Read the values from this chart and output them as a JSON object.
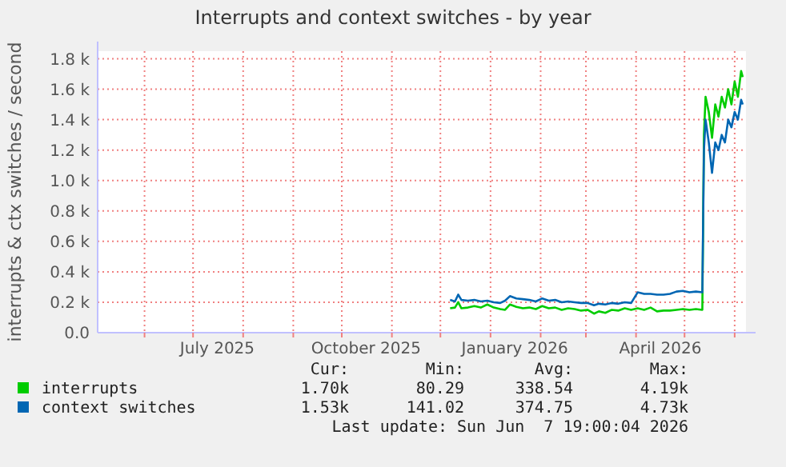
{
  "chart_data": {
    "type": "line",
    "title": "Interrupts and context switches - by year",
    "ylabel": "interrupts & ctx switches / second",
    "xlim": [
      "2025-05-03",
      "2026-06-08"
    ],
    "xticks": [
      {
        "value": "2025-06-01",
        "label": null
      },
      {
        "value": "2025-07-01",
        "label": null
      },
      {
        "value": "2025-07-16",
        "label": "July 2025"
      },
      {
        "value": "2025-08-01",
        "label": null
      },
      {
        "value": "2025-09-01",
        "label": null
      },
      {
        "value": "2025-10-01",
        "label": null
      },
      {
        "value": "2025-10-16",
        "label": "October 2025"
      },
      {
        "value": "2025-11-01",
        "label": null
      },
      {
        "value": "2025-12-01",
        "label": null
      },
      {
        "value": "2026-01-01",
        "label": null
      },
      {
        "value": "2026-01-16",
        "label": "January 2026"
      },
      {
        "value": "2026-02-01",
        "label": null
      },
      {
        "value": "2026-03-01",
        "label": null
      },
      {
        "value": "2026-04-01",
        "label": null
      },
      {
        "value": "2026-04-16",
        "label": "April 2026"
      },
      {
        "value": "2026-05-01",
        "label": null
      },
      {
        "value": "2026-06-01",
        "label": null
      }
    ],
    "ylim": [
      0,
      1850
    ],
    "yticks": [
      {
        "value": 0,
        "label": "0.0"
      },
      {
        "value": 200,
        "label": "0.2 k"
      },
      {
        "value": 400,
        "label": "0.4 k"
      },
      {
        "value": 600,
        "label": "0.6 k"
      },
      {
        "value": 800,
        "label": "0.8 k"
      },
      {
        "value": 1000,
        "label": "1.0 k"
      },
      {
        "value": 1200,
        "label": "1.2 k"
      },
      {
        "value": 1400,
        "label": "1.4 k"
      },
      {
        "value": 1600,
        "label": "1.6 k"
      },
      {
        "value": 1800,
        "label": "1.8 k"
      }
    ],
    "grid": true,
    "legend": "bottom",
    "x": [
      "2025-12-07",
      "2025-12-10",
      "2025-12-12",
      "2025-12-14",
      "2025-12-18",
      "2025-12-22",
      "2025-12-26",
      "2025-12-30",
      "2026-01-03",
      "2026-01-07",
      "2026-01-10",
      "2026-01-13",
      "2026-01-17",
      "2026-01-21",
      "2026-01-25",
      "2026-01-29",
      "2026-02-02",
      "2026-02-06",
      "2026-02-10",
      "2026-02-14",
      "2026-02-18",
      "2026-02-22",
      "2026-02-26",
      "2026-03-02",
      "2026-03-06",
      "2026-03-09",
      "2026-03-13",
      "2026-03-17",
      "2026-03-21",
      "2026-03-25",
      "2026-03-29",
      "2026-04-02",
      "2026-04-06",
      "2026-04-10",
      "2026-04-14",
      "2026-04-18",
      "2026-04-22",
      "2026-04-26",
      "2026-04-30",
      "2026-05-04",
      "2026-05-08",
      "2026-05-12",
      "2026-05-13",
      "2026-05-14",
      "2026-05-16",
      "2026-05-18",
      "2026-05-20",
      "2026-05-22",
      "2026-05-24",
      "2026-05-26",
      "2026-05-28",
      "2026-05-30",
      "2026-06-01",
      "2026-06-03",
      "2026-06-05",
      "2026-06-06"
    ],
    "series": [
      {
        "name": "interrupts",
        "color": "#00cc00",
        "values": [
          160,
          165,
          200,
          160,
          165,
          175,
          165,
          185,
          165,
          155,
          150,
          185,
          170,
          160,
          165,
          155,
          175,
          160,
          165,
          150,
          160,
          155,
          145,
          150,
          125,
          140,
          130,
          150,
          145,
          160,
          150,
          160,
          150,
          165,
          140,
          145,
          145,
          150,
          155,
          150,
          155,
          150,
          1300,
          1550,
          1450,
          1280,
          1500,
          1420,
          1550,
          1480,
          1600,
          1500,
          1650,
          1550,
          1720,
          1680
        ]
      },
      {
        "name": "context switches",
        "color": "#0066b3",
        "values": [
          215,
          205,
          250,
          215,
          210,
          215,
          205,
          210,
          200,
          195,
          210,
          240,
          225,
          220,
          215,
          205,
          225,
          210,
          215,
          200,
          205,
          200,
          195,
          195,
          180,
          190,
          185,
          195,
          190,
          200,
          195,
          265,
          255,
          255,
          250,
          250,
          255,
          270,
          275,
          265,
          270,
          265,
          1200,
          1400,
          1250,
          1050,
          1250,
          1200,
          1300,
          1250,
          1400,
          1350,
          1450,
          1400,
          1530,
          1500
        ]
      }
    ],
    "annotations": [
      "Cur:",
      "Min:",
      "Avg:",
      "Max:",
      "1.70k",
      "80.29",
      "338.54",
      "4.19k",
      "1.53k",
      "141.02",
      "374.75",
      "4.73k",
      "Last update: Sun Jun  7 19:00:04 2026"
    ]
  }
}
